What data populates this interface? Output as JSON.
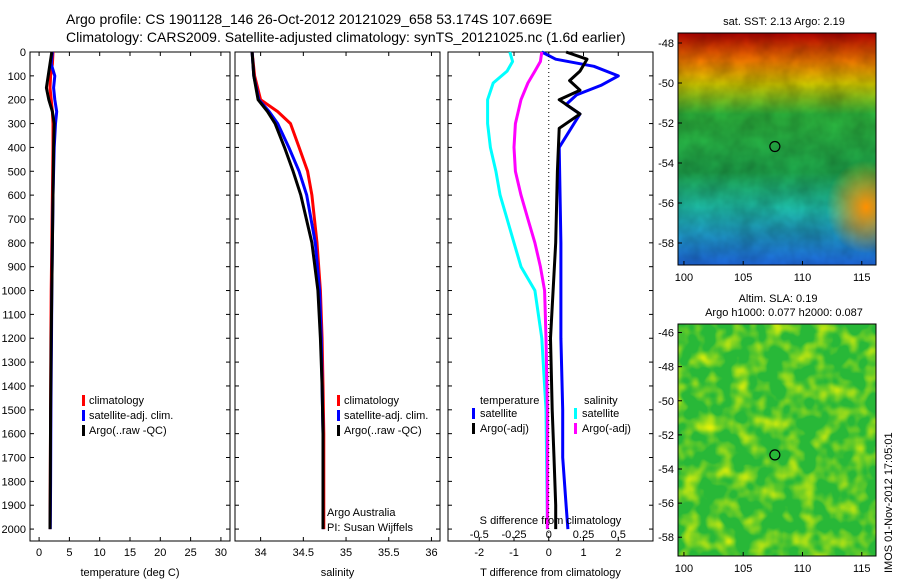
{
  "header": {
    "title_line1": "Argo profile: CS 1901128_146 26-Oct-2012 20121029_658 53.174S 107.669E",
    "title_line2": "Climatology: CARS2009. Satellite-adjusted climatology: synTS_20121025.nc (1.6d earlier)"
  },
  "chart_data": [
    {
      "type": "line",
      "id": "temperature",
      "xlabel": "temperature (deg C)",
      "ylabel": "",
      "xlim": [
        -1.5,
        31.5
      ],
      "ylim": [
        2050,
        0
      ],
      "xticks": [
        0,
        5,
        10,
        15,
        20,
        25,
        30
      ],
      "yticks": [
        0,
        100,
        200,
        300,
        400,
        500,
        600,
        700,
        800,
        900,
        1000,
        1100,
        1200,
        1300,
        1400,
        1500,
        1600,
        1700,
        1800,
        1900,
        2000
      ],
      "legend": [
        "climatology",
        "satellite-adj. clim.",
        "Argo(..raw -QC)"
      ],
      "legend_loc": "lower-center",
      "series": [
        {
          "name": "climatology",
          "color": "#ff0000",
          "x": [
            2.3,
            2.2,
            1.9,
            1.8,
            2.0,
            2.2,
            2.3,
            2.3,
            2.2,
            2.1,
            2.0,
            1.95,
            1.9,
            1.85,
            1.8
          ],
          "y": [
            0,
            50,
            100,
            150,
            200,
            250,
            300,
            400,
            600,
            800,
            1000,
            1200,
            1500,
            1800,
            2000
          ]
        },
        {
          "name": "satellite-adj. clim.",
          "color": "#0000ff",
          "x": [
            2.2,
            2.0,
            2.6,
            2.4,
            2.6,
            2.9,
            2.7,
            2.5,
            2.3,
            2.2,
            2.1,
            2.05,
            1.95,
            1.9,
            1.85
          ],
          "y": [
            0,
            50,
            100,
            150,
            200,
            250,
            300,
            400,
            600,
            800,
            1000,
            1200,
            1500,
            1800,
            2000
          ]
        },
        {
          "name": "Argo(..raw -QC)",
          "color": "#000000",
          "x": [
            2.1,
            1.8,
            1.5,
            1.2,
            1.6,
            2.2,
            2.5,
            2.4,
            2.3,
            2.2,
            2.1,
            2.0,
            1.9,
            1.85,
            1.8
          ],
          "y": [
            0,
            50,
            100,
            150,
            200,
            250,
            300,
            400,
            600,
            800,
            1000,
            1200,
            1500,
            1800,
            2000
          ]
        }
      ]
    },
    {
      "type": "line",
      "id": "salinity",
      "xlabel": "salinity",
      "ylabel": "",
      "xlim": [
        33.7,
        36.1
      ],
      "ylim": [
        2050,
        0
      ],
      "xticks": [
        34,
        34.5,
        35,
        35.5,
        36
      ],
      "xtick_labels": [
        "34",
        "34.5",
        "35",
        "35.5",
        "36"
      ],
      "legend": [
        "climatology",
        "satellite-adj. clim.",
        "Argo(..raw -QC)"
      ],
      "legend_loc": "lower-center",
      "annotation": [
        "Argo Australia",
        "PI: Susan Wijffels"
      ],
      "series": [
        {
          "name": "climatology",
          "color": "#ff0000",
          "x": [
            33.9,
            33.93,
            34.0,
            34.2,
            34.35,
            34.45,
            34.55,
            34.6,
            34.66,
            34.7,
            34.72,
            34.73,
            34.74,
            34.74,
            34.74
          ],
          "y": [
            0,
            100,
            200,
            250,
            300,
            400,
            500,
            600,
            800,
            1000,
            1200,
            1400,
            1600,
            1800,
            2000
          ]
        },
        {
          "name": "satellite-adj. clim.",
          "color": "#0000ff",
          "x": [
            33.9,
            33.92,
            33.98,
            34.1,
            34.2,
            34.33,
            34.45,
            34.54,
            34.64,
            34.69,
            34.71,
            34.72,
            34.73,
            34.73,
            34.73
          ],
          "y": [
            0,
            100,
            200,
            250,
            300,
            400,
            500,
            600,
            800,
            1000,
            1200,
            1400,
            1600,
            1800,
            2000
          ]
        },
        {
          "name": "Argo(..raw -QC)",
          "color": "#000000",
          "x": [
            33.9,
            33.92,
            33.97,
            34.08,
            34.17,
            34.28,
            34.38,
            34.47,
            34.6,
            34.67,
            34.7,
            34.72,
            34.73,
            34.73,
            34.73
          ],
          "y": [
            0,
            100,
            200,
            250,
            300,
            400,
            500,
            600,
            800,
            1000,
            1200,
            1400,
            1600,
            1800,
            2000
          ]
        }
      ]
    },
    {
      "type": "line",
      "id": "difference",
      "xlabel": "T difference from climatology",
      "xlabel_top": "S difference from climatology",
      "ylabel": "",
      "xlim": [
        -2.9,
        3.0
      ],
      "ylim": [
        2050,
        0
      ],
      "xticks": [
        -2,
        -1,
        0,
        1,
        2
      ],
      "xtick_labels": [
        "-2",
        "-1",
        "0",
        "1",
        "2"
      ],
      "xticks_s": [
        -0.5,
        -0.25,
        0,
        0.25,
        0.5
      ],
      "xtick_labels_s": [
        "-0.5",
        "-0.25",
        "0",
        "0.25",
        "0.5"
      ],
      "s_scale": 4,
      "legend_groups": [
        {
          "title": "temperature",
          "entries": [
            "satellite",
            "Argo(-adj)"
          ]
        },
        {
          "title": "salinity",
          "entries": [
            "satellite",
            "Argo(-adj)"
          ]
        }
      ],
      "series": [
        {
          "name": "satellite",
          "color": "#0000ff",
          "x": [
            -0.2,
            0.2,
            1.3,
            2.0,
            1.5,
            0.8,
            0.5,
            0.9,
            0.3,
            0.35,
            0.35,
            0.4,
            0.4,
            0.5,
            0.55
          ],
          "y": [
            0,
            30,
            60,
            100,
            140,
            180,
            220,
            260,
            400,
            800,
            1200,
            1500,
            1700,
            1900,
            2000
          ]
        },
        {
          "name": "Argo(-adj)",
          "color": "#000000",
          "x": [
            0.5,
            1.1,
            0.9,
            0.6,
            0.9,
            0.3,
            0.9,
            0.3,
            0.25,
            0.2,
            0.05,
            0.1,
            0.15,
            0.2,
            0.2
          ],
          "y": [
            0,
            30,
            80,
            120,
            160,
            200,
            260,
            320,
            500,
            800,
            1200,
            1500,
            1700,
            1900,
            2000
          ]
        },
        {
          "name": "satellite",
          "color": "#00ffff",
          "x": [
            -0.28,
            -0.26,
            -0.3,
            -0.4,
            -0.44,
            -0.44,
            -0.42,
            -0.38,
            -0.35,
            -0.3,
            -0.25,
            -0.2,
            -0.1,
            -0.05,
            -0.02,
            -0.01
          ],
          "y": [
            0,
            40,
            80,
            130,
            200,
            300,
            400,
            500,
            600,
            700,
            800,
            900,
            1000,
            1200,
            1500,
            2000
          ]
        },
        {
          "name": "Argo(-adj)",
          "color": "#ff00ff",
          "x": [
            -0.05,
            -0.06,
            -0.1,
            -0.15,
            -0.2,
            -0.24,
            -0.25,
            -0.24,
            -0.2,
            -0.15,
            -0.1,
            -0.06,
            -0.03,
            -0.02,
            -0.01,
            -0.01
          ],
          "y": [
            0,
            40,
            80,
            130,
            200,
            300,
            400,
            500,
            600,
            700,
            800,
            900,
            1000,
            1200,
            1500,
            2000
          ]
        }
      ]
    },
    {
      "type": "heatmap",
      "id": "sst_map",
      "title": "sat. SST: 2.13 Argo: 2.19",
      "xlim": [
        99.5,
        116.2
      ],
      "ylim": [
        -59.1,
        -47.5
      ],
      "xticks": [
        100,
        105,
        110,
        115
      ],
      "yticks": [
        -48,
        -50,
        -52,
        -54,
        -56,
        -58
      ],
      "marker": {
        "lon": 107.669,
        "lat": -53.174
      }
    },
    {
      "type": "heatmap",
      "id": "sla_map",
      "title_line1": "Altim. SLA: 0.19",
      "title_line2": "Argo h1000: 0.077 h2000: 0.087",
      "xlim": [
        99.5,
        116.2
      ],
      "ylim": [
        -59.1,
        -45.5
      ],
      "xticks": [
        100,
        105,
        110,
        115
      ],
      "yticks": [
        -46,
        -48,
        -50,
        -52,
        -54,
        -56,
        -58
      ],
      "marker": {
        "lon": 107.669,
        "lat": -53.174
      }
    }
  ],
  "footer": {
    "stamp": "IMOS 01-Nov-2012 17:05:01"
  }
}
